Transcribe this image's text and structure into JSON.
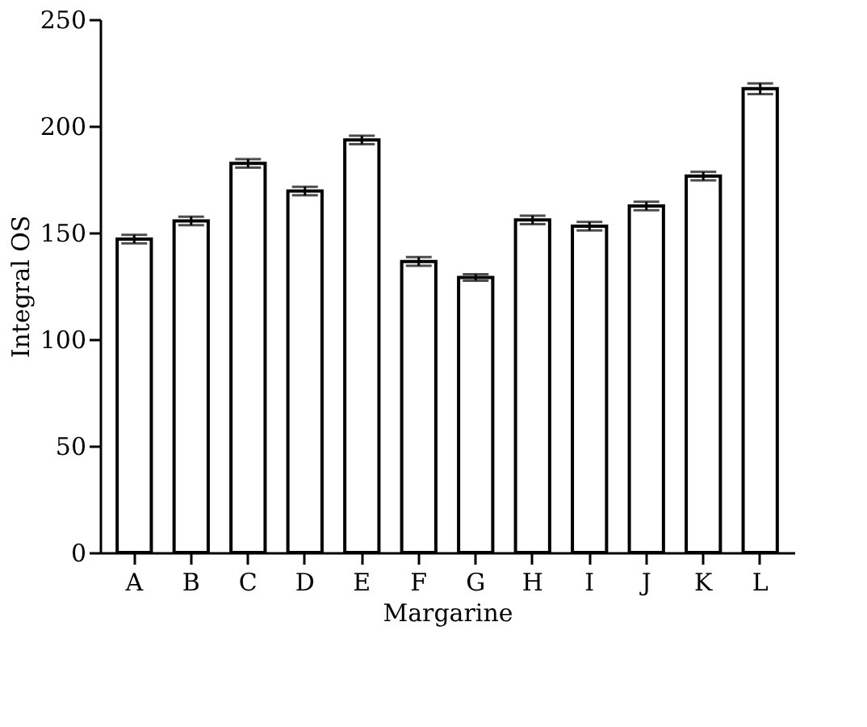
{
  "chart_data": {
    "type": "bar",
    "xlabel": "Margarine",
    "ylabel": "Integral OS",
    "categories": [
      "A",
      "B",
      "C",
      "D",
      "E",
      "F",
      "G",
      "H",
      "I",
      "J",
      "K",
      "L"
    ],
    "values": [
      147,
      155.5,
      182.5,
      169.5,
      193.5,
      136.5,
      129,
      156,
      153,
      162.5,
      176.5,
      217.5
    ],
    "errors": [
      2,
      2,
      2,
      2,
      2,
      2,
      1.5,
      2,
      2,
      2,
      2,
      2.5
    ],
    "color": "#ffffff",
    "ylim": [
      0,
      250
    ],
    "yticks": [
      0,
      50,
      100,
      150,
      200,
      250
    ],
    "grid": false,
    "legend": false
  }
}
